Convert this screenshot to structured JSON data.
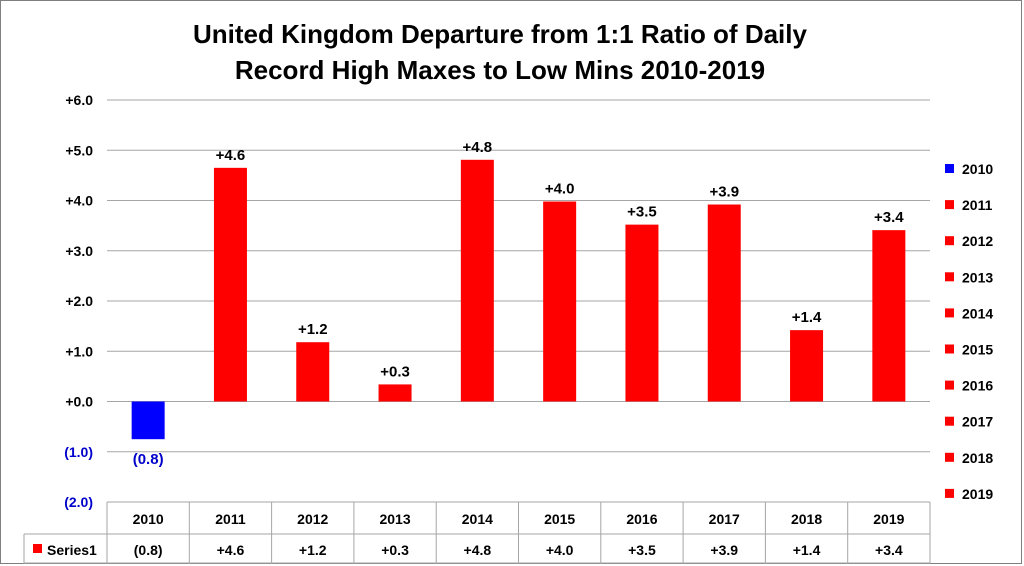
{
  "chart_data": {
    "type": "bar",
    "title_line1": "United Kingdom Departure from 1:1 Ratio of Daily",
    "title_line2": "Record High Maxes to Low Mins 2010-2019",
    "categories": [
      "2010",
      "2011",
      "2012",
      "2013",
      "2014",
      "2015",
      "2016",
      "2017",
      "2018",
      "2019"
    ],
    "series": [
      {
        "name": "Series1",
        "values": [
          -0.75,
          4.65,
          1.18,
          0.34,
          4.81,
          3.98,
          3.52,
          3.92,
          1.42,
          3.41
        ],
        "labels": [
          "(0.8)",
          "+4.6",
          "+1.2",
          "+0.3",
          "+4.8",
          "+4.0",
          "+3.5",
          "+3.9",
          "+1.4",
          "+3.4"
        ]
      }
    ],
    "bar_colors": [
      "#0000ff",
      "#ff0000",
      "#ff0000",
      "#ff0000",
      "#ff0000",
      "#ff0000",
      "#ff0000",
      "#ff0000",
      "#ff0000",
      "#ff0000"
    ],
    "positive_label_color": "#000000",
    "negative_label_color": "#0000cc",
    "ylim": [
      -2,
      6
    ],
    "yticks": [
      6,
      5,
      4,
      3,
      2,
      1,
      0,
      -1,
      -2
    ],
    "ytick_labels": [
      "+6.0",
      "+5.0",
      "+4.0",
      "+3.0",
      "+2.0",
      "+1.0",
      "+0.0",
      "(1.0)",
      "(2.0)"
    ],
    "grid": true,
    "legend": {
      "position": "right",
      "entries": [
        "2010",
        "2011",
        "2012",
        "2013",
        "2014",
        "2015",
        "2016",
        "2017",
        "2018",
        "2019"
      ]
    },
    "data_table": {
      "row_label": "Series1"
    }
  }
}
